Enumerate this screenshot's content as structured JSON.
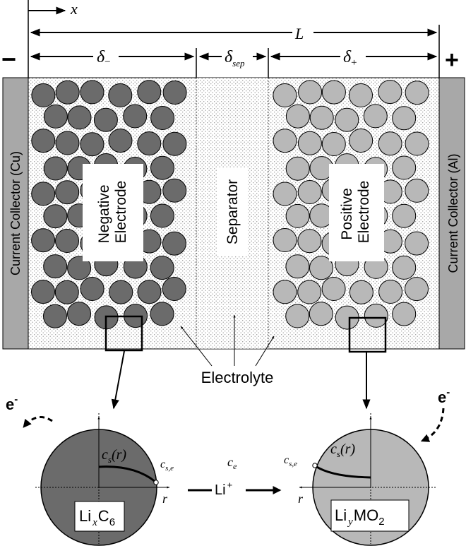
{
  "dimensions": {
    "x_axis": "x",
    "length": "L",
    "delta_neg": "δ",
    "delta_neg_sub": "−",
    "delta_sep": "δ",
    "delta_sep_sub": "sep",
    "delta_pos": "δ",
    "delta_pos_sub": "+"
  },
  "terminals": {
    "negative": "−",
    "positive": "+"
  },
  "collectors": {
    "left": "Current Collector (Cu)",
    "right": "Current Collector (Al)"
  },
  "regions": {
    "negative_line1": "Negative",
    "negative_line2": "Electrode",
    "separator": "Separator",
    "positive_line1": "Positive",
    "positive_line2": "Electrode"
  },
  "electrolyte": "Electrolyte",
  "particles": {
    "electron_left": "e",
    "electron_right": "e",
    "electron_sup": "-",
    "cs_r": "c",
    "cs_sub": "s",
    "cs_arg": "(r)",
    "cse_main": "c",
    "cse_sub": "s,e",
    "r_axis": "r",
    "ce_main": "c",
    "ce_sub": "e",
    "li_ion": "Li",
    "li_ion_sup": "+",
    "neg_formula": {
      "a": "Li",
      "b": "x",
      "c": "C",
      "d": "6"
    },
    "pos_formula": {
      "a": "Li",
      "b": "y",
      "c": "MO",
      "d": "2"
    }
  },
  "colors": {
    "negative_particle": "#6b6b6b",
    "positive_particle": "#b8b8b8",
    "collector": "#a8a8a8",
    "electrolyte_dots": "#9a9a9a"
  }
}
